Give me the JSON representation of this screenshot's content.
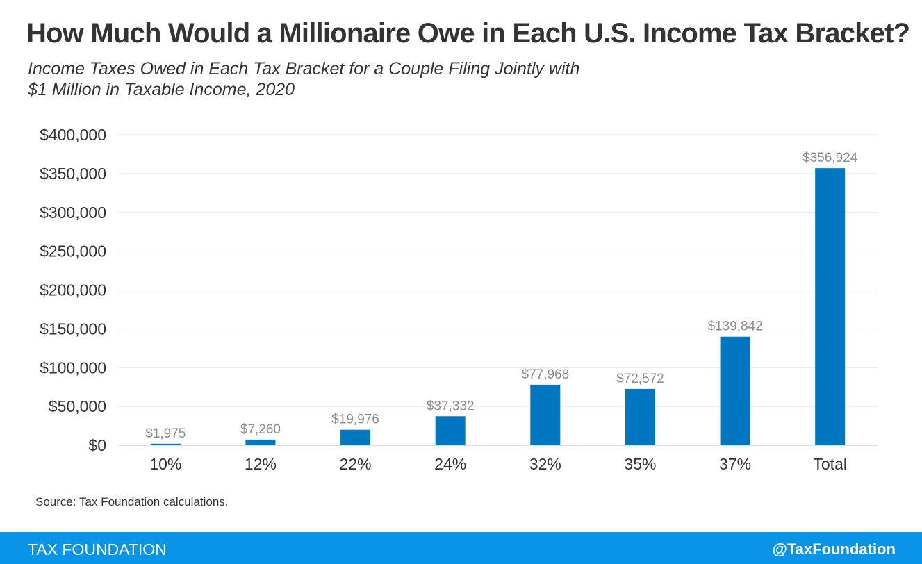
{
  "header": {
    "title": "How Much Would a Millionaire Owe in Each U.S. Income Tax Bracket?",
    "subtitle_line1": "Income Taxes Owed in Each Tax Bracket for a Couple Filing Jointly with",
    "subtitle_line2": "$1 Million in Taxable Income, 2020"
  },
  "chart_data": {
    "type": "bar",
    "categories": [
      "10%",
      "12%",
      "22%",
      "24%",
      "32%",
      "35%",
      "37%",
      "Total"
    ],
    "values": [
      1975,
      7260,
      19976,
      37332,
      77968,
      72572,
      139842,
      356924
    ],
    "data_labels": [
      "$1,975",
      "$7,260",
      "$19,976",
      "$37,332",
      "$77,968",
      "$72,572",
      "$139,842",
      "$356,924"
    ],
    "yticks": [
      "$0",
      "$50,000",
      "$100,000",
      "$150,000",
      "$200,000",
      "$250,000",
      "$300,000",
      "$350,000",
      "$400,000"
    ],
    "ylim": [
      0,
      400000
    ],
    "grid": true,
    "bar_color": "#0077c0",
    "xlabel": "",
    "ylabel": ""
  },
  "source": "Source: Tax Foundation calculations.",
  "footer": {
    "brand": "TAX FOUNDATION",
    "handle": "@TaxFoundation",
    "color": "#0a94e8"
  }
}
